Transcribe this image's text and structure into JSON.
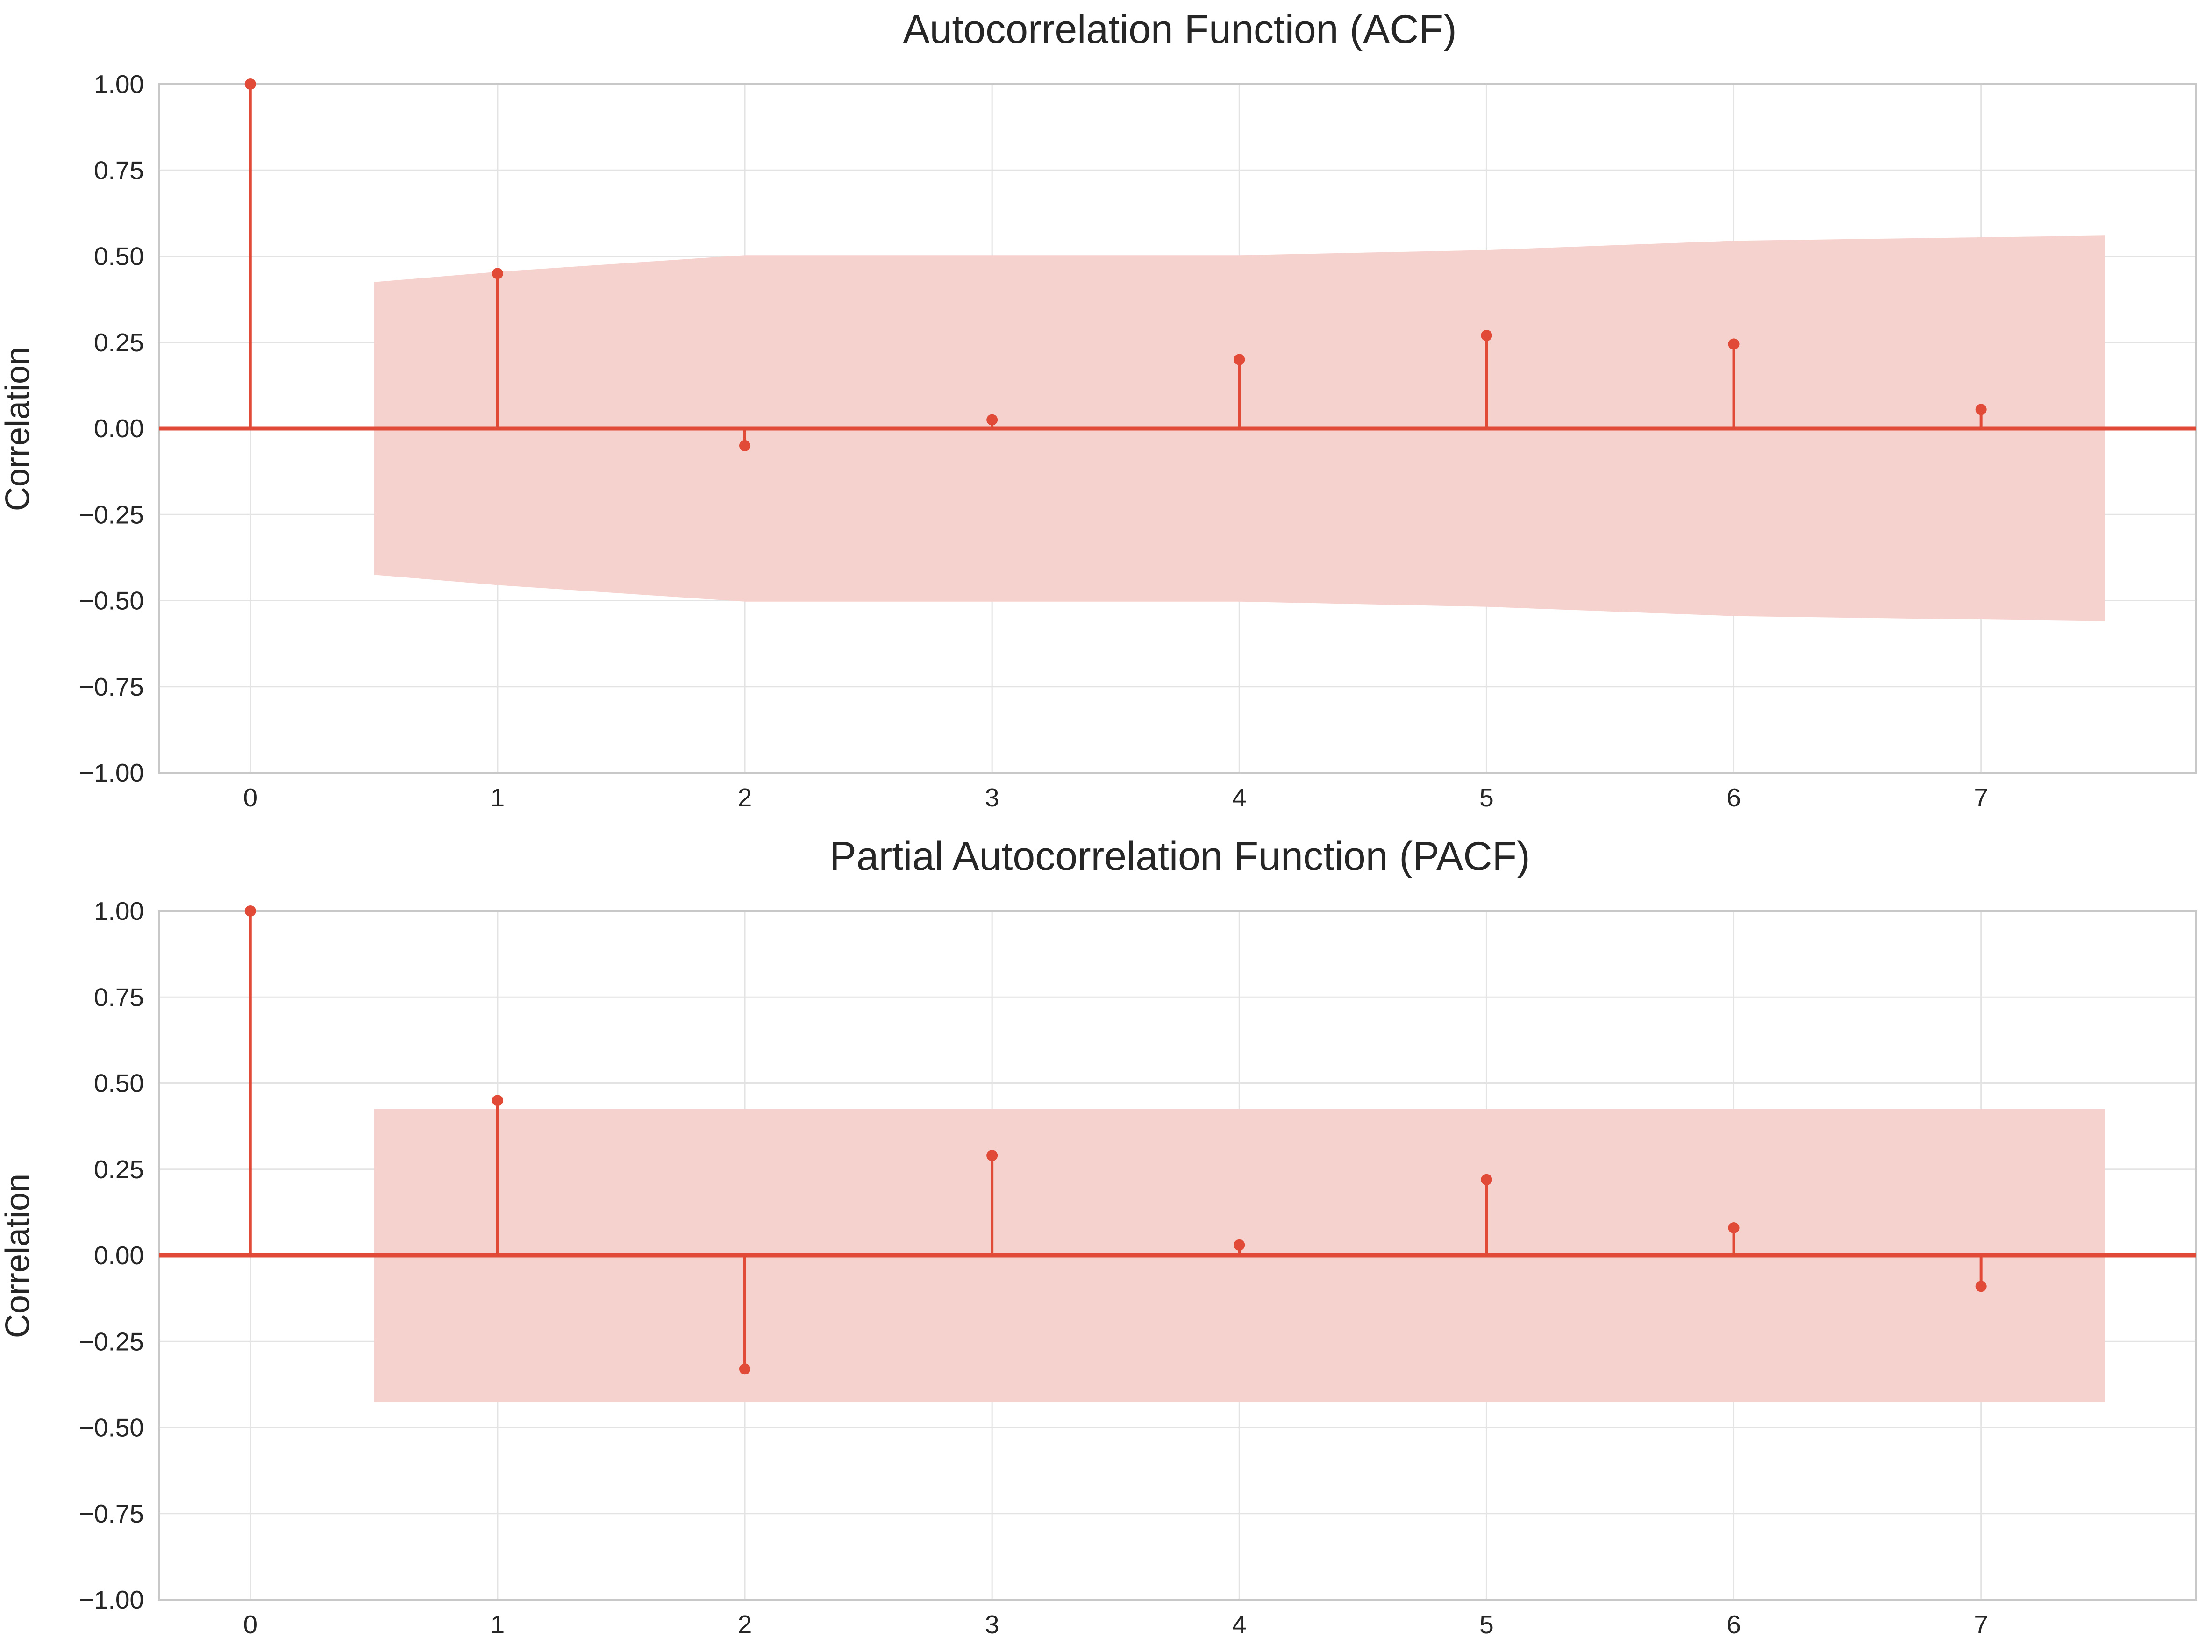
{
  "colors": {
    "accent": "#e04a36",
    "band": "#f6d2ce",
    "grid": "#e3e3e3",
    "frame": "#c8c8c8",
    "text": "#262626"
  },
  "chart_data": [
    {
      "type": "stem",
      "title": "Autocorrelation Function (ACF)",
      "xlabel": "",
      "ylabel": "Correlation",
      "xlim": [
        -0.37,
        7.87
      ],
      "ylim": [
        -1.0,
        1.0
      ],
      "x": [
        0,
        1,
        2,
        3,
        4,
        5,
        6,
        7
      ],
      "values": [
        1.0,
        0.45,
        -0.05,
        0.025,
        0.2,
        0.27,
        0.245,
        0.055
      ],
      "xticks": [
        "0",
        "1",
        "2",
        "3",
        "4",
        "5",
        "6",
        "7"
      ],
      "yticks": [
        "1.00",
        "0.75",
        "0.50",
        "0.25",
        "0.00",
        "−0.25",
        "−0.50",
        "−0.75",
        "−1.00"
      ],
      "confidence_band": {
        "x": [
          0.5,
          1,
          2,
          3,
          4,
          5,
          6,
          7,
          7.5
        ],
        "upper": [
          0.425,
          0.455,
          0.503,
          0.503,
          0.503,
          0.518,
          0.545,
          0.555,
          0.56
        ],
        "lower": [
          -0.425,
          -0.455,
          -0.503,
          -0.503,
          -0.503,
          -0.518,
          -0.545,
          -0.555,
          -0.56
        ]
      },
      "grid": true
    },
    {
      "type": "stem",
      "title": "Partial Autocorrelation Function (PACF)",
      "xlabel": "",
      "ylabel": "Correlation",
      "xlim": [
        -0.37,
        7.87
      ],
      "ylim": [
        -1.0,
        1.0
      ],
      "x": [
        0,
        1,
        2,
        3,
        4,
        5,
        6,
        7
      ],
      "values": [
        1.0,
        0.45,
        -0.33,
        0.29,
        0.03,
        0.22,
        0.08,
        -0.09
      ],
      "xticks": [
        "0",
        "1",
        "2",
        "3",
        "4",
        "5",
        "6",
        "7"
      ],
      "yticks": [
        "1.00",
        "0.75",
        "0.50",
        "0.25",
        "0.00",
        "−0.25",
        "−0.50",
        "−0.75",
        "−1.00"
      ],
      "confidence_band": {
        "x": [
          0.5,
          7.5
        ],
        "upper": [
          0.425,
          0.425
        ],
        "lower": [
          -0.425,
          -0.425
        ]
      },
      "grid": true
    }
  ]
}
